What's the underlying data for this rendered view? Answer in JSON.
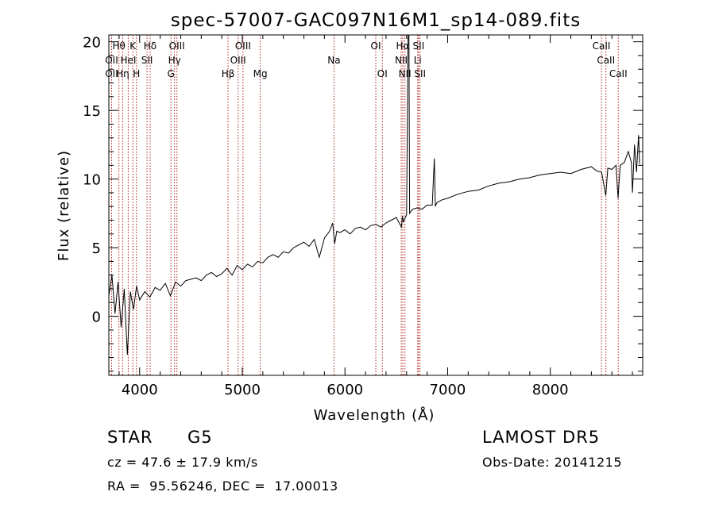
{
  "chart_data": {
    "type": "line",
    "title": "spec-57007-GAC097N16M1_sp14-089.fits",
    "xlabel": "Wavelength (Å)",
    "ylabel": "Flux (relative)",
    "xlim": [
      3700,
      8900
    ],
    "ylim": [
      -4.3,
      20.5
    ],
    "xticks": [
      4000,
      5000,
      6000,
      7000,
      8000
    ],
    "yticks": [
      0,
      5,
      10,
      15,
      20
    ],
    "grid": false,
    "legend": "none",
    "line_color": "#000000",
    "marker_color": "#b22222",
    "series": [
      {
        "x": [
          3700,
          3730,
          3760,
          3790,
          3820,
          3850,
          3880,
          3910,
          3940,
          3970,
          4000,
          4050,
          4100,
          4150,
          4200,
          4250,
          4300,
          4350,
          4400,
          4450,
          4500,
          4550,
          4600,
          4650,
          4700,
          4750,
          4800,
          4850,
          4900,
          4950,
          5000,
          5050,
          5100,
          5150,
          5200,
          5250,
          5300,
          5350,
          5400,
          5450,
          5500,
          5550,
          5600,
          5650,
          5700,
          5750,
          5800,
          5850,
          5880,
          5900,
          5920,
          5950,
          6000,
          6050,
          6100,
          6150,
          6200,
          6250,
          6300,
          6350,
          6400,
          6450,
          6500,
          6550,
          6560,
          6570,
          6600,
          6620,
          6630,
          6640,
          6660,
          6700,
          6750,
          6800,
          6850,
          6870,
          6880,
          6890,
          6900,
          6950,
          7000,
          7100,
          7200,
          7300,
          7400,
          7500,
          7600,
          7700,
          7800,
          7900,
          8000,
          8100,
          8200,
          8300,
          8400,
          8450,
          8500,
          8540,
          8560,
          8600,
          8640,
          8660,
          8680,
          8720,
          8760,
          8790,
          8800,
          8820,
          8840,
          8860,
          8870
        ],
        "y": [
          1.5,
          3.0,
          0.2,
          2.5,
          -0.8,
          2.0,
          -2.8,
          1.8,
          0.5,
          2.2,
          1.2,
          1.8,
          1.4,
          2.1,
          1.9,
          2.4,
          1.5,
          2.5,
          2.2,
          2.6,
          2.7,
          2.8,
          2.6,
          3.0,
          3.2,
          2.9,
          3.1,
          3.5,
          3.0,
          3.7,
          3.4,
          3.8,
          3.6,
          4.0,
          3.9,
          4.3,
          4.5,
          4.3,
          4.7,
          4.6,
          5.0,
          5.2,
          5.4,
          5.1,
          5.6,
          4.3,
          5.7,
          6.2,
          6.8,
          5.3,
          6.2,
          6.1,
          6.3,
          6.0,
          6.4,
          6.5,
          6.3,
          6.6,
          6.7,
          6.5,
          6.8,
          7.0,
          7.2,
          6.5,
          7.3,
          6.9,
          7.4,
          26.0,
          7.5,
          7.6,
          7.8,
          7.9,
          7.8,
          8.1,
          8.1,
          11.5,
          8.0,
          8.2,
          8.3,
          8.5,
          8.6,
          8.9,
          9.1,
          9.2,
          9.5,
          9.7,
          9.8,
          10.0,
          10.1,
          10.3,
          10.4,
          10.5,
          10.4,
          10.7,
          10.9,
          10.6,
          10.5,
          8.8,
          10.8,
          10.7,
          11.0,
          8.6,
          11.0,
          11.2,
          12.0,
          11.2,
          9.0,
          12.5,
          10.5,
          13.2,
          11.1
        ]
      }
    ],
    "lines": [
      {
        "label": "Hθ",
        "wave": 3798,
        "row": 1
      },
      {
        "label": "Hη",
        "wave": 3835,
        "row": 3
      },
      {
        "label": "OII",
        "wave": 3727,
        "row": 2
      },
      {
        "label": "OII",
        "wave": 3727,
        "row": 3
      },
      {
        "label": "K",
        "wave": 3934,
        "row": 1
      },
      {
        "label": "H",
        "wave": 3969,
        "row": 3
      },
      {
        "label": "HeI",
        "wave": 3889,
        "row": 2
      },
      {
        "label": "Hδ",
        "wave": 4102,
        "row": 1
      },
      {
        "label": "SII",
        "wave": 4072,
        "row": 2
      },
      {
        "label": "OIII",
        "wave": 4363,
        "row": 1
      },
      {
        "label": "Hγ",
        "wave": 4340,
        "row": 2
      },
      {
        "label": "G",
        "wave": 4305,
        "row": 3
      },
      {
        "label": "OIII",
        "wave": 5007,
        "row": 1
      },
      {
        "label": "OIII",
        "wave": 4959,
        "row": 2
      },
      {
        "label": "Hβ",
        "wave": 4861,
        "row": 3
      },
      {
        "label": "Mg",
        "wave": 5175,
        "row": 3
      },
      {
        "label": "Na",
        "wave": 5893,
        "row": 2
      },
      {
        "label": "OI",
        "wave": 6300,
        "row": 1
      },
      {
        "label": "OI",
        "wave": 6364,
        "row": 3
      },
      {
        "label": "Hα",
        "wave": 6563,
        "row": 1
      },
      {
        "label": "NII",
        "wave": 6548,
        "row": 2
      },
      {
        "label": "NII",
        "wave": 6584,
        "row": 3
      },
      {
        "label": "SII",
        "wave": 6717,
        "row": 1
      },
      {
        "label": "Li",
        "wave": 6708,
        "row": 2
      },
      {
        "label": "SII",
        "wave": 6731,
        "row": 3
      },
      {
        "label": "CaII",
        "wave": 8498,
        "row": 1
      },
      {
        "label": "CaII",
        "wave": 8542,
        "row": 2
      },
      {
        "label": "CaII",
        "wave": 8662,
        "row": 3
      }
    ]
  },
  "info": {
    "object_class": "STAR",
    "subclass": "G5",
    "survey": "LAMOST DR5",
    "cz": "cz = 47.6 ± 17.9 km/s",
    "obs_date": "Obs-Date: 20141215",
    "coords": "RA =  95.56246, DEC =  17.00013"
  }
}
